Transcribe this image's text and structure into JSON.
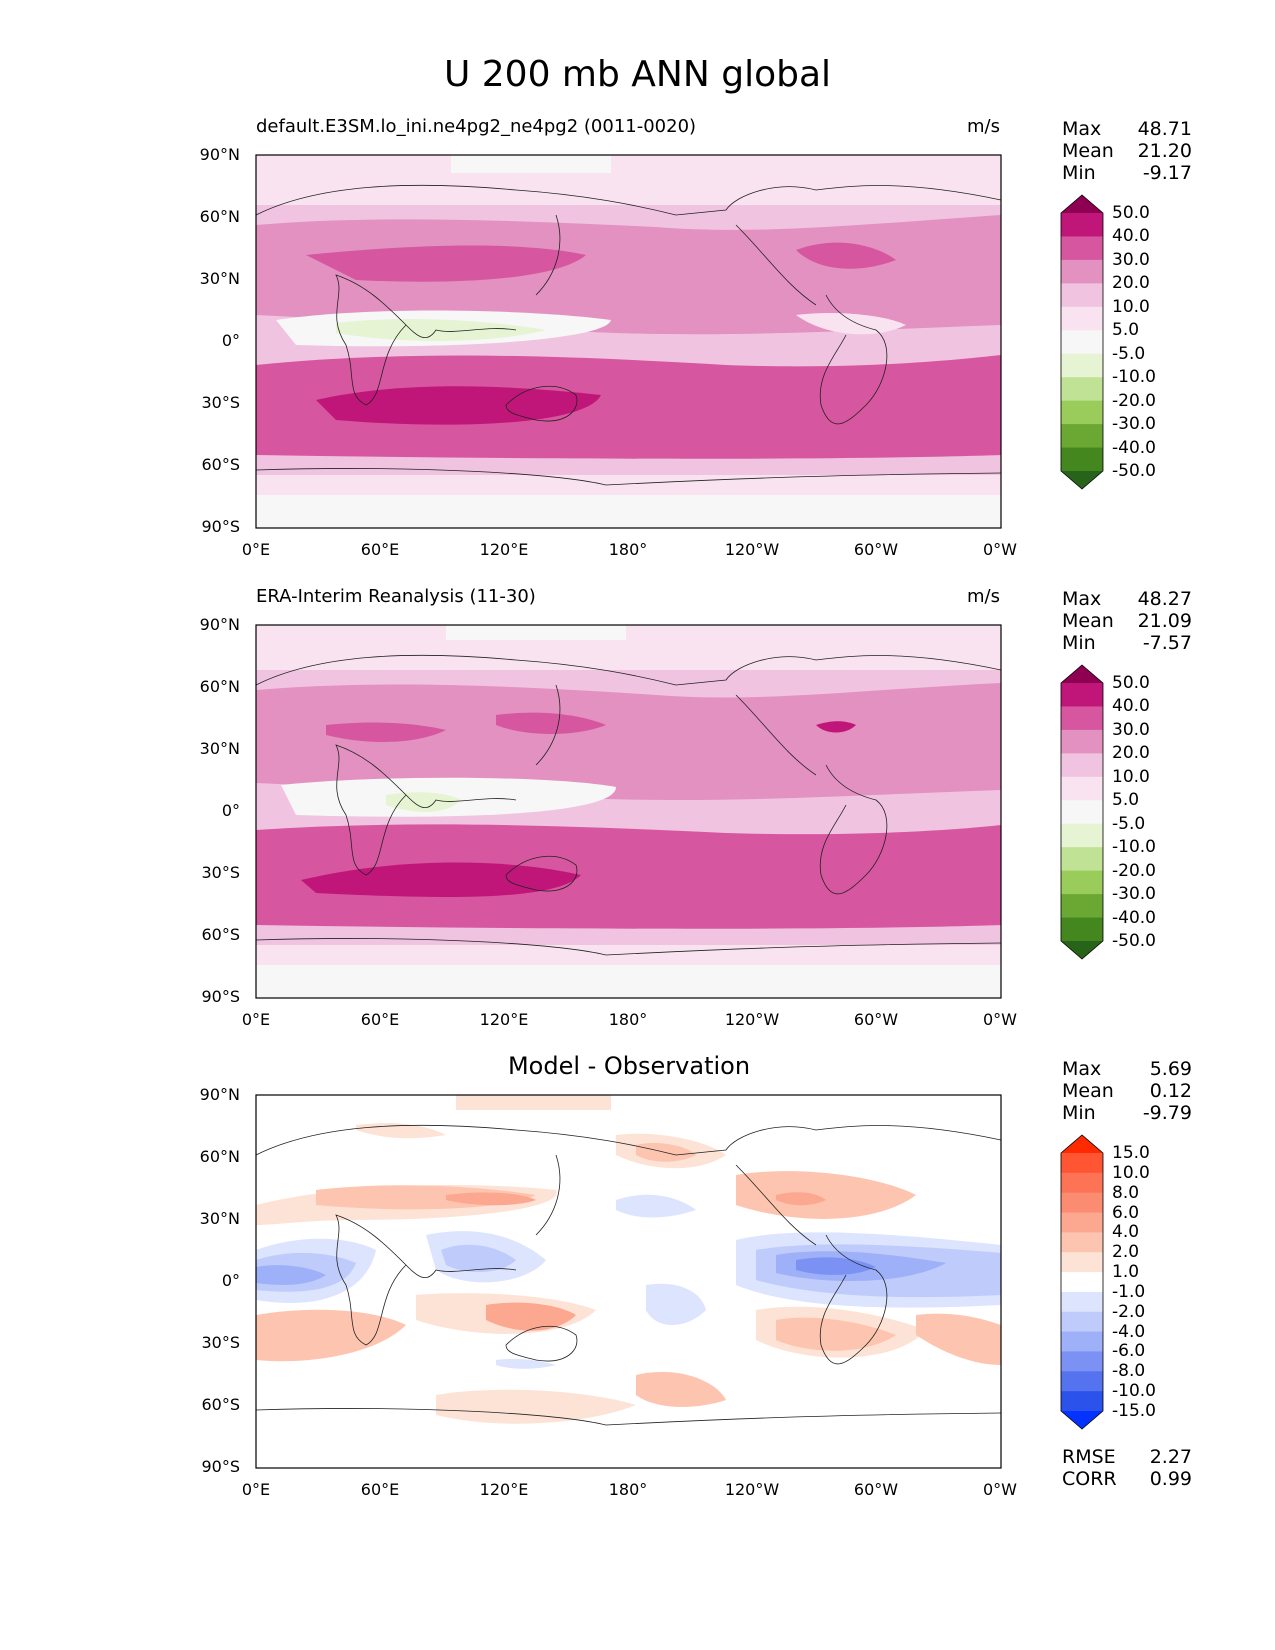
{
  "figure_title": "U 200 mb ANN global",
  "lat_ticks": [
    "90°N",
    "60°N",
    "30°N",
    "0°",
    "30°S",
    "60°S",
    "90°S"
  ],
  "lon_ticks": [
    "0°E",
    "60°E",
    "120°E",
    "180°",
    "120°W",
    "60°W",
    "0°W"
  ],
  "panels": [
    {
      "id": "test",
      "title_left": "default.E3SM.lo_ini.ne4pg2_ne4pg2 (0011-0020)",
      "title_right": "m/s",
      "stats": [
        {
          "label": "Max",
          "value": "48.71"
        },
        {
          "label": "Mean",
          "value": "21.20"
        },
        {
          "label": "Min",
          "value": "-9.17"
        }
      ]
    },
    {
      "id": "ref",
      "title_left": "ERA-Interim Reanalysis (11-30)",
      "title_right": "m/s",
      "stats": [
        {
          "label": "Max",
          "value": "48.27"
        },
        {
          "label": "Mean",
          "value": "21.09"
        },
        {
          "label": "Min",
          "value": "-7.57"
        }
      ]
    },
    {
      "id": "diff",
      "title_center": "Model - Observation",
      "stats": [
        {
          "label": "Max",
          "value": "5.69"
        },
        {
          "label": "Mean",
          "value": "0.12"
        },
        {
          "label": "Min",
          "value": "-9.79"
        }
      ],
      "footer": [
        {
          "label": "RMSE",
          "value": "2.27"
        },
        {
          "label": "CORR",
          "value": "0.99"
        }
      ]
    }
  ],
  "colorbar_main": {
    "labels": [
      "50.0",
      "40.0",
      "30.0",
      "20.0",
      "10.0",
      "5.0",
      "-5.0",
      "-10.0",
      "-20.0",
      "-30.0",
      "-40.0",
      "-50.0"
    ],
    "colors": [
      "#8e0152",
      "#c0167a",
      "#d6579f",
      "#e291c0",
      "#f0c3e0",
      "#f9e3f0",
      "#f7f7f7",
      "#e6f4d3",
      "#c0e295",
      "#99cc5a",
      "#6ba833",
      "#43871e",
      "#276419"
    ]
  },
  "colorbar_diff": {
    "labels": [
      "15.0",
      "10.0",
      "8.0",
      "6.0",
      "4.0",
      "2.0",
      "1.0",
      "-1.0",
      "-2.0",
      "-4.0",
      "-6.0",
      "-8.0",
      "-10.0",
      "-15.0"
    ],
    "colors": [
      "#ff2a00",
      "#ff5533",
      "#fc7355",
      "#fb8c72",
      "#fca890",
      "#fdc4b0",
      "#fde2d6",
      "#ffffff",
      "#dde4fd",
      "#bfcbfb",
      "#9db0f8",
      "#7b92f4",
      "#5573ef",
      "#2b52eb",
      "#0433ff"
    ]
  }
}
